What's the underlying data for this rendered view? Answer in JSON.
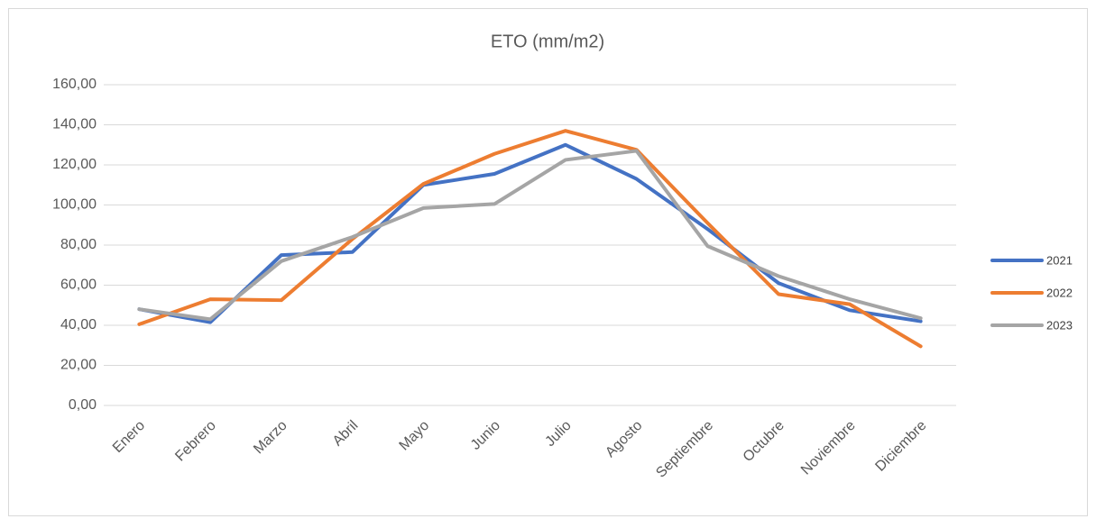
{
  "chart_data": {
    "type": "line",
    "title": "ETO (mm/m2)",
    "categories": [
      "Enero",
      "Febrero",
      "Marzo",
      "Abril",
      "Mayo",
      "Junio",
      "Julio",
      "Agosto",
      "Septiembre",
      "Octubre",
      "Noviembre",
      "Diciembre"
    ],
    "series": [
      {
        "name": "2021",
        "color": "#4472c4",
        "values": [
          48,
          41.5,
          75,
          76.5,
          110,
          115.5,
          130,
          113,
          88,
          61,
          47.5,
          42
        ]
      },
      {
        "name": "2022",
        "color": "#ed7d31",
        "values": [
          40.5,
          53,
          52.5,
          83,
          110.5,
          125.5,
          137,
          127.5,
          91,
          55.5,
          50.5,
          29.5
        ]
      },
      {
        "name": "2023",
        "color": "#a5a5a5",
        "values": [
          48,
          43,
          72,
          84,
          98.5,
          100.5,
          122.5,
          127,
          79.5,
          64.5,
          53,
          43.5
        ]
      }
    ],
    "ylim": [
      0,
      160
    ],
    "yticks": [
      {
        "value": 0,
        "label": "0,00"
      },
      {
        "value": 20,
        "label": "20,00"
      },
      {
        "value": 40,
        "label": "40,00"
      },
      {
        "value": 60,
        "label": "60,00"
      },
      {
        "value": 80,
        "label": "80,00"
      },
      {
        "value": 100,
        "label": "100,00"
      },
      {
        "value": 120,
        "label": "120,00"
      },
      {
        "value": 140,
        "label": "140,00"
      },
      {
        "value": 160,
        "label": "160,00"
      }
    ],
    "grid": true,
    "legend": "right"
  }
}
